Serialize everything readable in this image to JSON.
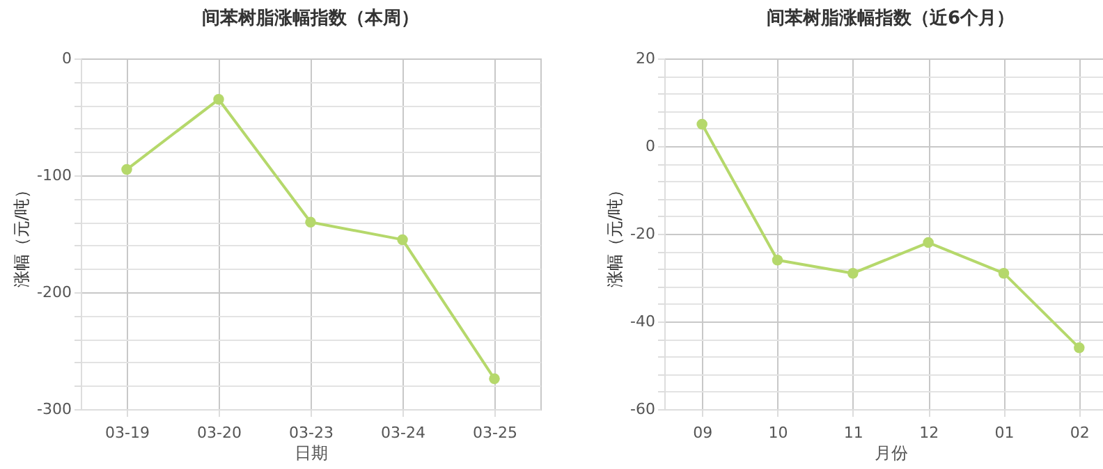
{
  "chart_data": [
    {
      "type": "line",
      "title": "间苯树脂涨幅指数（本周）",
      "xlabel": "日期",
      "ylabel": "涨幅（元/吨）",
      "categories": [
        "03-19",
        "03-20",
        "03-23",
        "03-24",
        "03-25"
      ],
      "series": [
        {
          "color": "#b5d86b",
          "values": [
            -95,
            -35,
            -140,
            -155,
            -274
          ]
        }
      ],
      "ylim": [
        -300,
        0
      ],
      "yticks": [
        -300,
        {
          "value": -280,
          "label": null
        },
        {
          "value": -260,
          "label": null
        },
        {
          "value": -240,
          "label": null
        },
        {
          "value": -220,
          "label": null
        },
        -200,
        {
          "value": -180,
          "label": null
        },
        {
          "value": -160,
          "label": null
        },
        {
          "value": -140,
          "label": null
        },
        {
          "value": -120,
          "label": null
        },
        -100,
        {
          "value": -80,
          "label": null
        },
        {
          "value": -60,
          "label": null
        },
        {
          "value": -40,
          "label": null
        },
        {
          "value": -20,
          "label": null
        },
        0
      ],
      "grid": true,
      "marker": "circle",
      "legend": false
    },
    {
      "type": "line",
      "title": "间苯树脂涨幅指数（近6个月）",
      "xlabel": "月份",
      "ylabel": "涨幅（元/吨）",
      "categories": [
        "09",
        "10",
        "11",
        "12",
        "01",
        "02"
      ],
      "series": [
        {
          "color": "#b5d86b",
          "values": [
            5,
            -26,
            -29,
            -22,
            -29,
            -46
          ]
        }
      ],
      "ylim": [
        -60,
        20
      ],
      "yticks": [
        -60,
        {
          "value": -56,
          "label": null
        },
        {
          "value": -52,
          "label": null
        },
        {
          "value": -48,
          "label": null
        },
        {
          "value": -44,
          "label": null
        },
        -40,
        {
          "value": -36,
          "label": null
        },
        {
          "value": -32,
          "label": null
        },
        {
          "value": -28,
          "label": null
        },
        {
          "value": -24,
          "label": null
        },
        -20,
        {
          "value": -16,
          "label": null
        },
        {
          "value": -12,
          "label": null
        },
        {
          "value": -8,
          "label": null
        },
        {
          "value": -4,
          "label": null
        },
        0,
        {
          "value": 4,
          "label": null
        },
        {
          "value": 8,
          "label": null
        },
        {
          "value": 12,
          "label": null
        },
        {
          "value": 16,
          "label": null
        },
        20
      ],
      "grid": true,
      "marker": "circle",
      "legend": false
    }
  ]
}
